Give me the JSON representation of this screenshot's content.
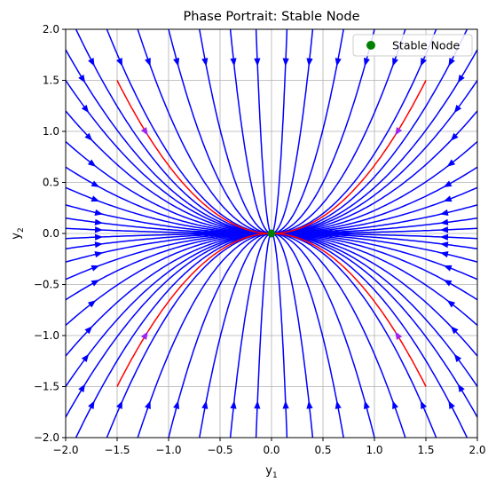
{
  "chart_data": {
    "type": "streamplot",
    "title": "Phase Portrait: Stable Node",
    "xlabel": "y",
    "xlabel_sub": "1",
    "ylabel": "y",
    "ylabel_sub": "2",
    "xlim": [
      -2.0,
      2.0
    ],
    "ylim": [
      -2.0,
      2.0
    ],
    "x_ticks": [
      -2.0,
      -1.5,
      -1.0,
      -0.5,
      0.0,
      0.5,
      1.0,
      1.5,
      2.0
    ],
    "y_ticks": [
      -2.0,
      -1.5,
      -1.0,
      -0.5,
      0.0,
      0.5,
      1.0,
      1.5,
      2.0
    ],
    "x_tick_labels": [
      "−2.0",
      "−1.5",
      "−1.0",
      "−0.5",
      "0.0",
      "0.5",
      "1.0",
      "1.5",
      "2.0"
    ],
    "y_tick_labels": [
      "−2.0",
      "−1.5",
      "−1.0",
      "−0.5",
      "0.0",
      "0.5",
      "1.0",
      "1.5",
      "2.0"
    ],
    "grid": true,
    "system": {
      "dy1_dt": "-y1",
      "dy2_dt": "-2*y2"
    },
    "equilibrium": {
      "x": 0.0,
      "y": 0.0,
      "label": "Stable Node",
      "color": "#008000"
    },
    "special_trajectories": {
      "description_curve": "y2 = ±y1^2 / 1.5",
      "x_range": [
        -1.5,
        1.5
      ],
      "color": "#ff0000",
      "arrows_at_x": [
        -1.2,
        1.2
      ]
    },
    "stream_color": "#0000ff",
    "legend": {
      "position": "upper right",
      "entries": [
        {
          "label": "Stable Node",
          "marker": "circle",
          "color": "#008000"
        }
      ]
    }
  }
}
